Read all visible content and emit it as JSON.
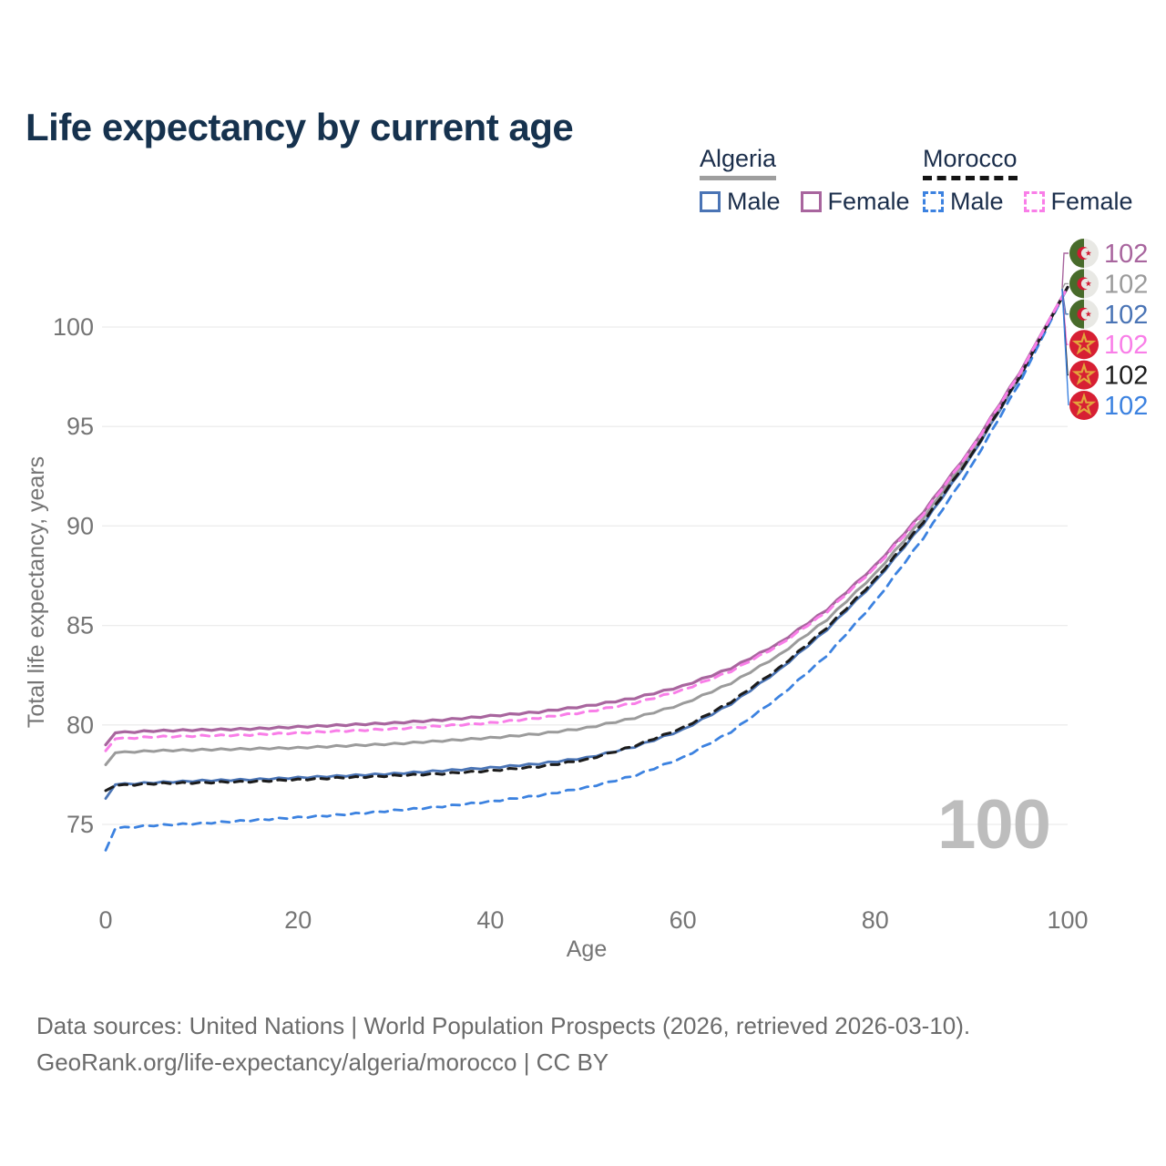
{
  "title": "Life expectancy by current age",
  "legend": {
    "groups": [
      {
        "country": "Algeria",
        "line_style": "solid",
        "line_color": "#9e9e9e",
        "items": [
          {
            "label": "Male",
            "color": "#4a74b5",
            "style": "solid"
          },
          {
            "label": "Female",
            "color": "#a8659e",
            "style": "solid"
          }
        ]
      },
      {
        "country": "Morocco",
        "line_style": "dashed",
        "line_color": "#141414",
        "items": [
          {
            "label": "Male",
            "color": "#3c82e0",
            "style": "dashed"
          },
          {
            "label": "Female",
            "color": "#f97ee8",
            "style": "dashed"
          }
        ]
      }
    ]
  },
  "chart_data": {
    "type": "line",
    "title": "Life expectancy by current age",
    "xlabel": "Age",
    "ylabel": "Total life expectancy, years",
    "x_ticks": [
      0,
      20,
      40,
      60,
      80,
      100
    ],
    "y_ticks": [
      75,
      80,
      85,
      90,
      95,
      100
    ],
    "xlim": [
      0,
      100
    ],
    "ylim": [
      73,
      103
    ],
    "grid": true,
    "legend_position": "top-right",
    "ages": [
      0,
      1,
      5,
      10,
      15,
      20,
      25,
      30,
      35,
      40,
      45,
      50,
      55,
      60,
      65,
      70,
      75,
      80,
      85,
      90,
      95,
      100
    ],
    "series": [
      {
        "name": "Algeria Male",
        "country": "Algeria",
        "sex": "male",
        "color": "#4a74b5",
        "dash": "solid",
        "values": [
          76.3,
          77.0,
          77.1,
          77.2,
          77.25,
          77.35,
          77.45,
          77.55,
          77.7,
          77.85,
          78.05,
          78.35,
          78.9,
          79.75,
          81.05,
          82.75,
          84.8,
          87.2,
          90.1,
          93.5,
          97.45,
          102
        ]
      },
      {
        "name": "Algeria",
        "country": "Algeria",
        "sex": "all",
        "color": "#9b9b9b",
        "dash": "solid",
        "values": [
          78.0,
          78.6,
          78.7,
          78.75,
          78.8,
          78.85,
          78.95,
          79.05,
          79.2,
          79.35,
          79.55,
          79.85,
          80.35,
          81.05,
          82.1,
          83.5,
          85.3,
          87.6,
          90.4,
          93.7,
          97.55,
          102
        ]
      },
      {
        "name": "Algeria Female",
        "country": "Algeria",
        "sex": "female",
        "color": "#a8659e",
        "dash": "solid",
        "values": [
          79.0,
          79.6,
          79.7,
          79.75,
          79.8,
          79.9,
          80.0,
          80.1,
          80.25,
          80.45,
          80.65,
          80.95,
          81.35,
          81.95,
          82.85,
          84.1,
          85.8,
          88.0,
          90.7,
          93.9,
          97.7,
          102
        ]
      },
      {
        "name": "Morocco Male",
        "country": "Morocco",
        "sex": "male",
        "color": "#3c82e0",
        "dash": "dashed",
        "values": [
          73.7,
          74.8,
          74.95,
          75.05,
          75.2,
          75.35,
          75.5,
          75.7,
          75.9,
          76.15,
          76.45,
          76.85,
          77.45,
          78.35,
          79.65,
          81.4,
          83.5,
          86.2,
          89.4,
          93.0,
          97.2,
          102
        ]
      },
      {
        "name": "Morocco",
        "country": "Morocco",
        "sex": "all",
        "color": "#1c1c1c",
        "dash": "dashed",
        "values": [
          76.7,
          76.95,
          77.05,
          77.1,
          77.15,
          77.25,
          77.35,
          77.45,
          77.55,
          77.7,
          77.9,
          78.25,
          78.95,
          79.85,
          81.15,
          82.85,
          84.9,
          87.3,
          90.2,
          93.55,
          97.5,
          102
        ]
      },
      {
        "name": "Morocco Female",
        "country": "Morocco",
        "sex": "female",
        "color": "#f97ee8",
        "dash": "dashed",
        "values": [
          78.7,
          79.3,
          79.4,
          79.45,
          79.5,
          79.6,
          79.7,
          79.8,
          79.95,
          80.1,
          80.35,
          80.65,
          81.1,
          81.75,
          82.7,
          84.0,
          85.7,
          87.9,
          90.6,
          93.85,
          97.65,
          102
        ]
      }
    ],
    "end_labels": [
      {
        "series": "Algeria Female",
        "flag": "algeria",
        "value": "102",
        "color": "#a8659e"
      },
      {
        "series": "Algeria",
        "flag": "algeria",
        "value": "102",
        "color": "#9b9b9b"
      },
      {
        "series": "Algeria Male",
        "flag": "algeria",
        "value": "102",
        "color": "#4a74b5"
      },
      {
        "series": "Morocco Female",
        "flag": "morocco",
        "value": "102",
        "color": "#f97ee8"
      },
      {
        "series": "Morocco",
        "flag": "morocco",
        "value": "102",
        "color": "#1c1c1c"
      },
      {
        "series": "Morocco Male",
        "flag": "morocco",
        "value": "102",
        "color": "#3c82e0"
      }
    ],
    "flag_colors": {
      "algeria_green": "#486b2b",
      "algeria_white": "#e8e8e4",
      "algeria_red": "#d21a32",
      "morocco_red": "#d71f33",
      "morocco_star": "#e3a63c"
    },
    "axis_color": "#757575",
    "grid_color": "#ececec"
  },
  "watermark_age": "100",
  "footer": {
    "line1": "Data sources: United Nations | World Population Prospects (2026, retrieved 2026-03-10).",
    "line2": "GeoRank.org/life-expectancy/algeria/morocco | CC BY"
  }
}
